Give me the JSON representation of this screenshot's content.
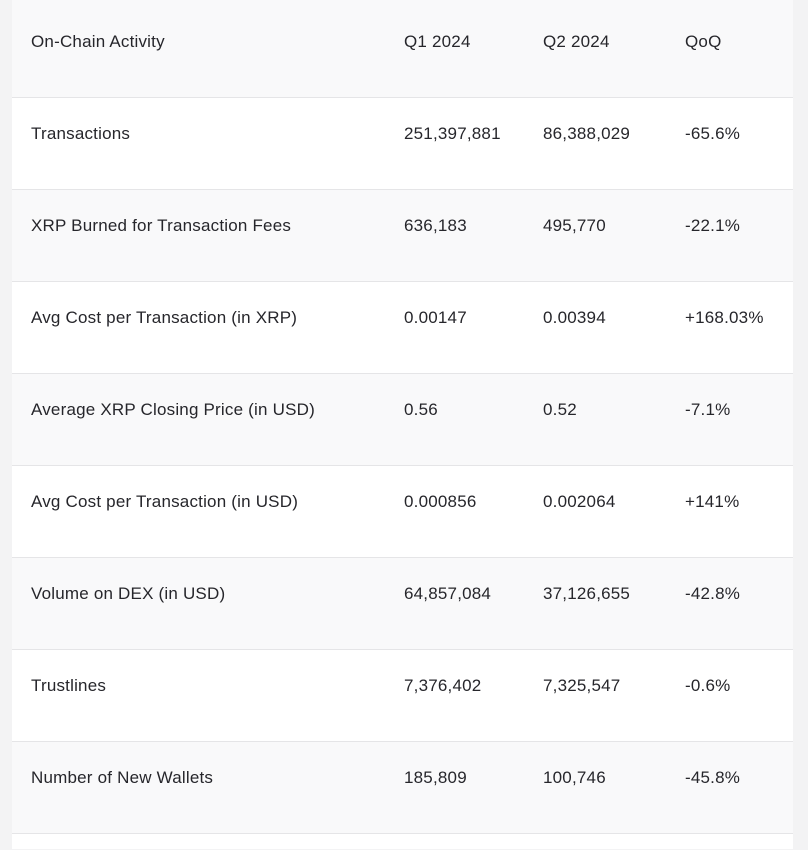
{
  "chart_data": {
    "type": "table",
    "title": "On-Chain Activity",
    "columns": [
      "On-Chain Activity",
      "Q1 2024",
      "Q2 2024",
      "QoQ"
    ],
    "rows": [
      {
        "label": "Transactions",
        "q1": "251,397,881",
        "q2": "86,388,029",
        "qoq": "-65.6%"
      },
      {
        "label": "XRP Burned for Transaction Fees",
        "q1": "636,183",
        "q2": "495,770",
        "qoq": "-22.1%"
      },
      {
        "label": "Avg Cost per Transaction (in XRP)",
        "q1": "0.00147",
        "q2": "0.00394",
        "qoq": "+168.03%"
      },
      {
        "label": "Average XRP Closing Price (in USD)",
        "q1": "0.56",
        "q2": "0.52",
        "qoq": "-7.1%"
      },
      {
        "label": "Avg Cost per Transaction (in USD)",
        "q1": "0.000856",
        "q2": "0.002064",
        "qoq": "+141%"
      },
      {
        "label": "Volume on DEX (in USD)",
        "q1": "64,857,084",
        "q2": "37,126,655",
        "qoq": "-42.8%"
      },
      {
        "label": "Trustlines",
        "q1": "7,376,402",
        "q2": "7,325,547",
        "qoq": "-0.6%"
      },
      {
        "label": "Number of New Wallets",
        "q1": "185,809",
        "q2": "100,746",
        "qoq": "-45.8%"
      }
    ],
    "layout": {
      "grid": "horizontal-dividers-only",
      "row_striping": "alternate",
      "value_alignment": "left"
    }
  },
  "colors": {
    "page_background": "#f3f3f4",
    "row_background": "#ffffff",
    "row_alt_background": "#f9f9fa",
    "divider": "#e5e5e7",
    "text": "#26262b"
  }
}
